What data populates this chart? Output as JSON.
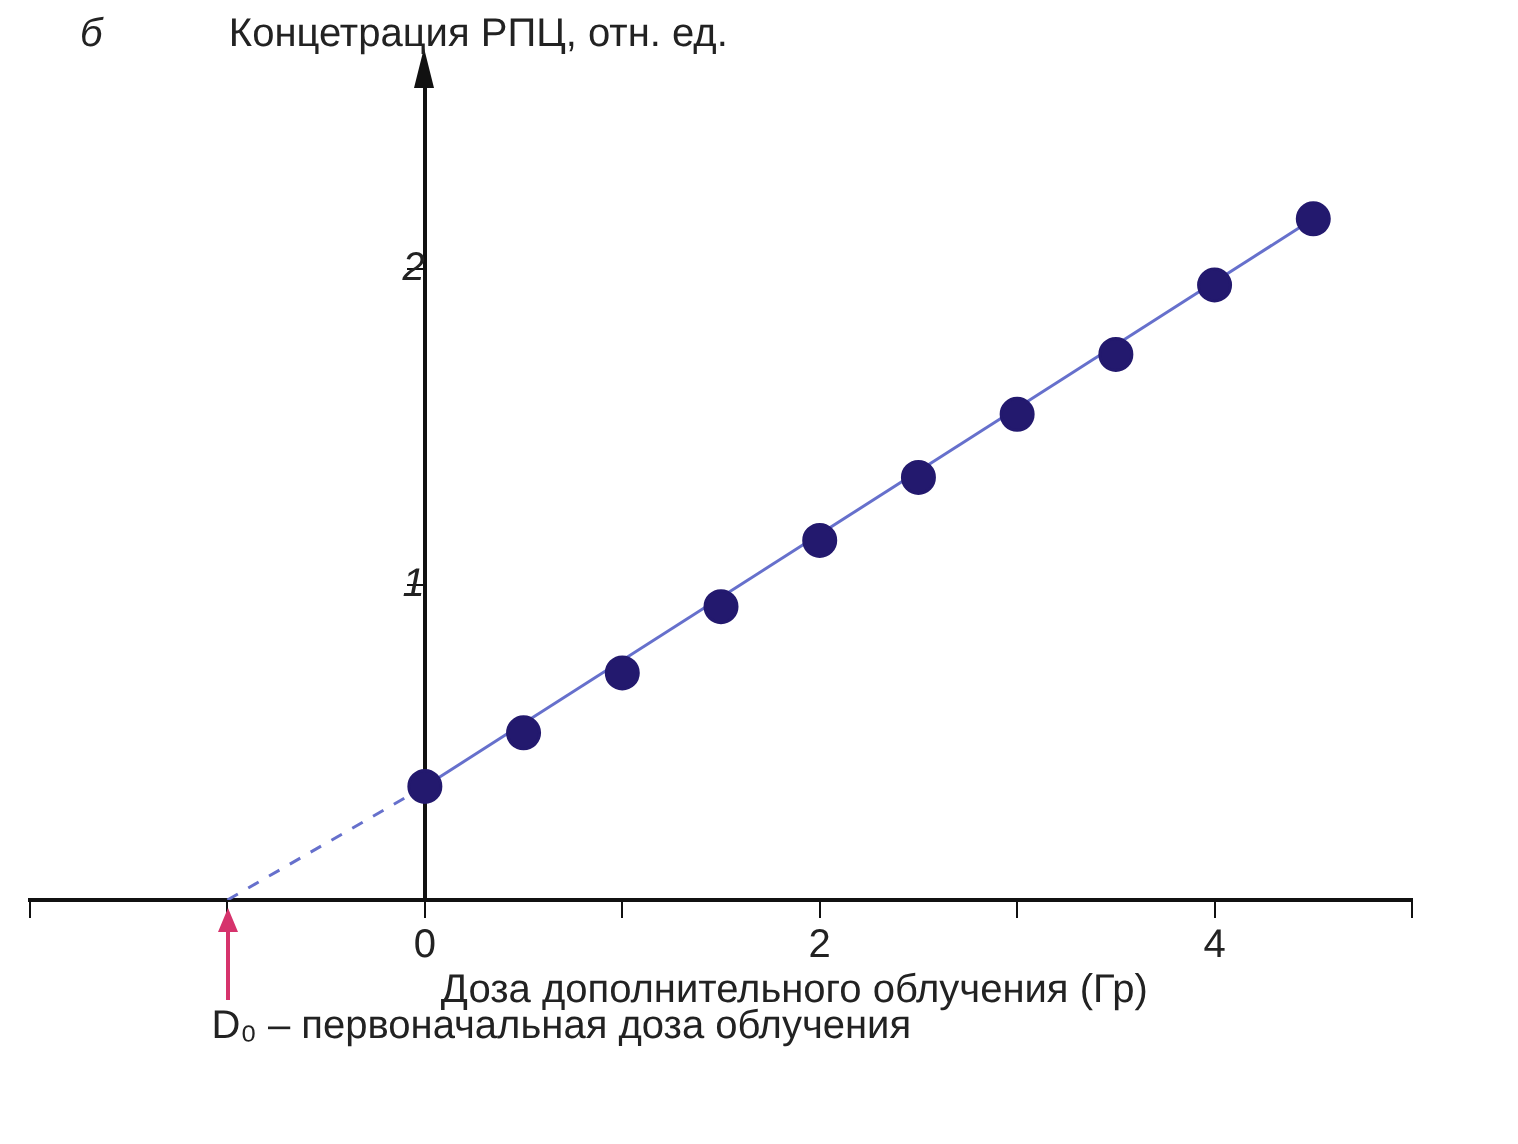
{
  "chart_data": {
    "type": "scatter",
    "ylabel": "Концетрация РПЦ, отн. ед.",
    "xlabel": "Доза дополнительного облучения (Гр)",
    "annotations": [
      "б",
      {
        "text": "D₀ – первоначальная доза облучения",
        "x": -1,
        "y": 0
      }
    ],
    "xlim": [
      -2,
      5
    ],
    "xticks": [
      {
        "value": -2,
        "label": null
      },
      {
        "value": -1,
        "label": null
      },
      0,
      {
        "value": 1,
        "label": null
      },
      2,
      {
        "value": 3,
        "label": null
      },
      4,
      {
        "value": 5,
        "label": null
      }
    ],
    "ylim": [
      0,
      2.6
    ],
    "yticks": [
      1,
      2
    ],
    "grid": false,
    "legend": false,
    "series": [
      {
        "color": "#23196e",
        "marker": "circle",
        "x": [
          0,
          0.5,
          1,
          1.5,
          2,
          2.5,
          3,
          3.5,
          4,
          4.5
        ],
        "values": [
          0.36,
          0.53,
          0.72,
          0.93,
          1.14,
          1.34,
          1.54,
          1.73,
          1.95,
          2.16
        ]
      },
      {
        "type": "line",
        "color": "#6670cc",
        "marker": "none",
        "x": [
          0,
          4.5
        ],
        "values": [
          0.36,
          2.16
        ]
      },
      {
        "type": "line",
        "color": "#6670cc",
        "marker": "none",
        "line_style": "dashed",
        "x": [
          -1,
          0
        ],
        "values": [
          0,
          0.36
        ]
      }
    ]
  }
}
